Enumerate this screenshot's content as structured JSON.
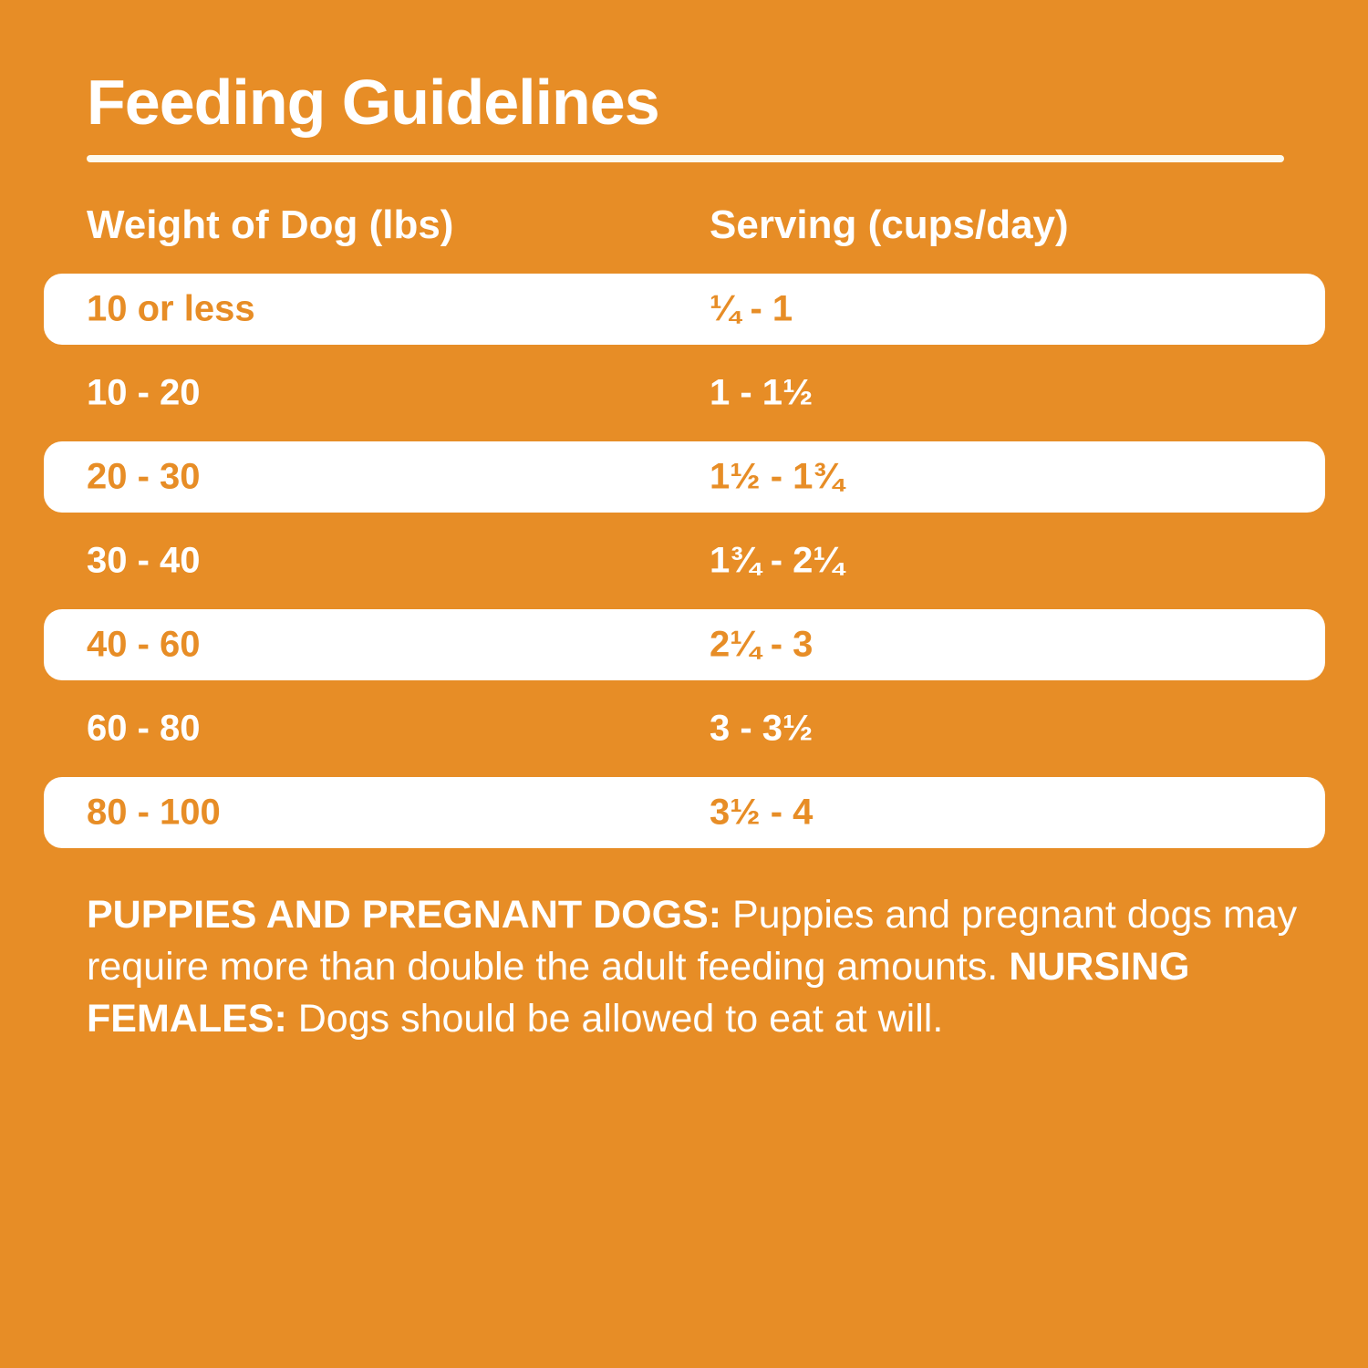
{
  "title": "Feeding Guidelines",
  "colors": {
    "background_orange": "#E78D26",
    "row_band_white": "#FFFFFF",
    "rule_cream": "#FDFAEE",
    "text_white": "#FFFFFF",
    "text_orange": "#E78D26"
  },
  "table": {
    "columns": [
      "Weight of Dog (lbs)",
      "Serving (cups/day)"
    ],
    "rows": [
      {
        "weight": "10 or less",
        "serving": "¼ - 1"
      },
      {
        "weight": "10 - 20",
        "serving": "1 - 1½"
      },
      {
        "weight": "20 - 30",
        "serving": "1½ - 1¾"
      },
      {
        "weight": "30 - 40",
        "serving": "1¾ - 2¼"
      },
      {
        "weight": "40 - 60",
        "serving": "2¼ - 3"
      },
      {
        "weight": "60 - 80",
        "serving": "3 - 3½"
      },
      {
        "weight": "80 - 100",
        "serving": "3½ - 4"
      }
    ]
  },
  "footer": {
    "puppies_label": "PUPPIES AND PREGNANT DOGS:",
    "puppies_text": "Puppies and pregnant dogs may require more than double the adult feeding amounts.",
    "nursing_label": "NURSING FEMALES:",
    "nursing_text": "Dogs should be allowed to eat at will."
  }
}
